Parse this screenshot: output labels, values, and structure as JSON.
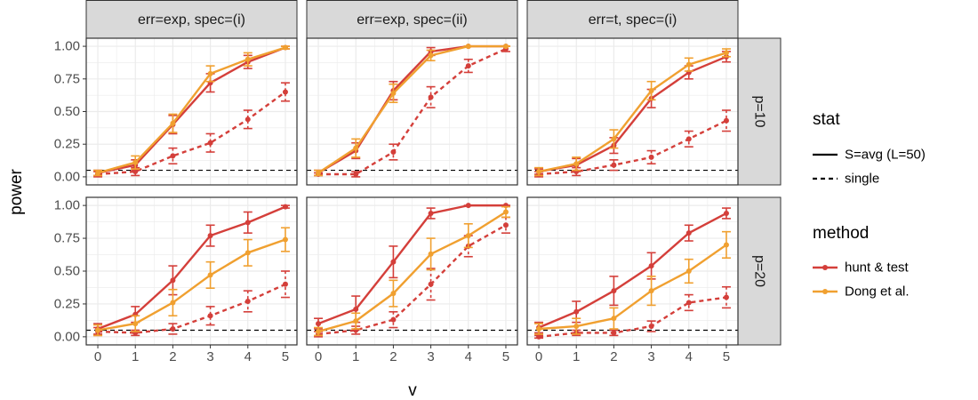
{
  "chart_data": {
    "type": "line",
    "xlabel": "v",
    "ylabel": "power",
    "x_ticks": [
      0,
      1,
      2,
      3,
      4,
      5
    ],
    "y_ticks": [
      "0.00",
      "0.25",
      "0.50",
      "0.75",
      "1.00"
    ],
    "ylim": [
      0,
      1
    ],
    "xlim": [
      0,
      5
    ],
    "reference_line": 0.05,
    "grid": true,
    "col_facets": [
      "err=exp, spec=(i)",
      "err=exp, spec=(ii)",
      "err=t, spec=(i)"
    ],
    "row_facets": [
      "p=10",
      "p=20"
    ],
    "colors": {
      "hunt_test": "#d43f3a",
      "dong": "#f0a030",
      "strip_fill": "#d9d9d9",
      "grid": "#ebebeb"
    },
    "legend": {
      "stat": {
        "title": "stat",
        "items": [
          {
            "label": "S=avg (L=50)",
            "linetype": "solid"
          },
          {
            "label": "single",
            "linetype": "dashed"
          }
        ]
      },
      "method": {
        "title": "method",
        "items": [
          {
            "label": "hunt & test",
            "color": "#d43f3a"
          },
          {
            "label": "Dong et al.",
            "color": "#f0a030"
          }
        ]
      }
    },
    "panels": [
      {
        "row": "p=10",
        "col": "err=exp, spec=(i)",
        "series": [
          {
            "method": "hunt & test",
            "stat": "S=avg (L=50)",
            "y": [
              0.03,
              0.09,
              0.4,
              0.72,
              0.88,
              0.99
            ],
            "err": [
              0.02,
              0.04,
              0.07,
              0.07,
              0.05,
              0.01
            ]
          },
          {
            "method": "Dong et al.",
            "stat": "S=avg (L=50)",
            "y": [
              0.03,
              0.11,
              0.41,
              0.79,
              0.9,
              0.99
            ],
            "err": [
              0.02,
              0.05,
              0.07,
              0.06,
              0.05,
              0.01
            ]
          },
          {
            "method": "hunt & test",
            "stat": "single",
            "y": [
              0.02,
              0.04,
              0.16,
              0.26,
              0.44,
              0.65
            ],
            "err": [
              0.02,
              0.03,
              0.06,
              0.07,
              0.07,
              0.07
            ]
          }
        ]
      },
      {
        "row": "p=10",
        "col": "err=exp, spec=(ii)",
        "series": [
          {
            "method": "hunt & test",
            "stat": "S=avg (L=50)",
            "y": [
              0.03,
              0.2,
              0.66,
              0.96,
              1.0,
              1.0
            ],
            "err": [
              0.02,
              0.06,
              0.07,
              0.03,
              0.0,
              0.0
            ]
          },
          {
            "method": "Dong et al.",
            "stat": "S=avg (L=50)",
            "y": [
              0.03,
              0.22,
              0.64,
              0.93,
              1.0,
              1.0
            ],
            "err": [
              0.02,
              0.07,
              0.07,
              0.04,
              0.0,
              0.0
            ]
          },
          {
            "method": "hunt & test",
            "stat": "single",
            "y": [
              0.02,
              0.02,
              0.19,
              0.61,
              0.85,
              0.98
            ],
            "err": [
              0.01,
              0.02,
              0.06,
              0.08,
              0.05,
              0.02
            ]
          }
        ]
      },
      {
        "row": "p=10",
        "col": "err=t, spec=(i)",
        "series": [
          {
            "method": "hunt & test",
            "stat": "S=avg (L=50)",
            "y": [
              0.04,
              0.09,
              0.24,
              0.6,
              0.8,
              0.92
            ],
            "err": [
              0.02,
              0.05,
              0.06,
              0.07,
              0.05,
              0.04
            ]
          },
          {
            "method": "Dong et al.",
            "stat": "S=avg (L=50)",
            "y": [
              0.04,
              0.1,
              0.29,
              0.66,
              0.86,
              0.95
            ],
            "err": [
              0.03,
              0.05,
              0.07,
              0.07,
              0.05,
              0.03
            ]
          },
          {
            "method": "hunt & test",
            "stat": "single",
            "y": [
              0.02,
              0.04,
              0.09,
              0.15,
              0.29,
              0.43
            ],
            "err": [
              0.02,
              0.03,
              0.04,
              0.05,
              0.06,
              0.08
            ]
          }
        ]
      },
      {
        "row": "p=20",
        "col": "err=exp, spec=(i)",
        "series": [
          {
            "method": "hunt & test",
            "stat": "S=avg (L=50)",
            "y": [
              0.06,
              0.17,
              0.43,
              0.77,
              0.87,
              0.99
            ],
            "err": [
              0.04,
              0.06,
              0.11,
              0.08,
              0.08,
              0.01
            ]
          },
          {
            "method": "Dong et al.",
            "stat": "S=avg (L=50)",
            "y": [
              0.05,
              0.1,
              0.26,
              0.47,
              0.64,
              0.74
            ],
            "err": [
              0.04,
              0.06,
              0.1,
              0.1,
              0.1,
              0.09
            ]
          },
          {
            "method": "hunt & test",
            "stat": "single",
            "y": [
              0.04,
              0.03,
              0.06,
              0.16,
              0.27,
              0.4
            ],
            "err": [
              0.03,
              0.02,
              0.04,
              0.07,
              0.08,
              0.1
            ]
          }
        ]
      },
      {
        "row": "p=20",
        "col": "err=exp, spec=(ii)",
        "series": [
          {
            "method": "hunt & test",
            "stat": "S=avg (L=50)",
            "y": [
              0.1,
              0.21,
              0.57,
              0.94,
              1.0,
              1.0
            ],
            "err": [
              0.04,
              0.1,
              0.12,
              0.04,
              0.0,
              0.0
            ]
          },
          {
            "method": "Dong et al.",
            "stat": "S=avg (L=50)",
            "y": [
              0.04,
              0.12,
              0.33,
              0.63,
              0.77,
              0.95
            ],
            "err": [
              0.03,
              0.06,
              0.1,
              0.12,
              0.09,
              0.04
            ]
          },
          {
            "method": "hunt & test",
            "stat": "single",
            "y": [
              0.02,
              0.05,
              0.13,
              0.4,
              0.69,
              0.85
            ],
            "err": [
              0.02,
              0.03,
              0.06,
              0.12,
              0.08,
              0.06
            ]
          }
        ]
      },
      {
        "row": "p=20",
        "col": "err=t, spec=(i)",
        "series": [
          {
            "method": "hunt & test",
            "stat": "S=avg (L=50)",
            "y": [
              0.07,
              0.19,
              0.35,
              0.54,
              0.79,
              0.94
            ],
            "err": [
              0.04,
              0.08,
              0.11,
              0.1,
              0.06,
              0.04
            ]
          },
          {
            "method": "Dong et al.",
            "stat": "S=avg (L=50)",
            "y": [
              0.06,
              0.08,
              0.14,
              0.35,
              0.5,
              0.7
            ],
            "err": [
              0.04,
              0.06,
              0.08,
              0.11,
              0.09,
              0.1
            ]
          },
          {
            "method": "hunt & test",
            "stat": "single",
            "y": [
              0.0,
              0.03,
              0.03,
              0.08,
              0.26,
              0.3
            ],
            "err": [
              0.01,
              0.02,
              0.02,
              0.04,
              0.06,
              0.08
            ]
          }
        ]
      }
    ]
  }
}
